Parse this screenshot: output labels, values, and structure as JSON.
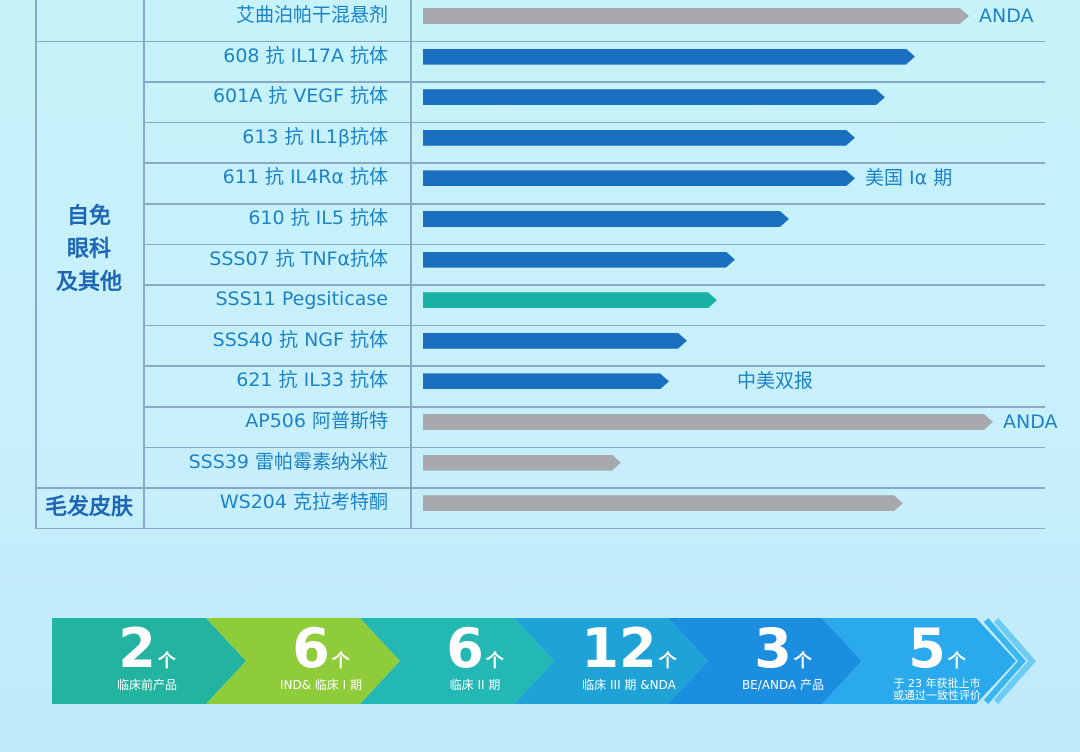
{
  "chart_data": {
    "type": "bar",
    "orientation": "horizontal",
    "categories": [
      {
        "label": "自免\n眼科\n及其他",
        "rows": [
          "608 抗 IL17A 抗体",
          "601A 抗 VEGF 抗体",
          "613 抗 IL1β抗体",
          "611 抗 IL4Rα 抗体",
          "610 抗 IL5 抗体",
          "SSS07 抗 TNFα抗体",
          "SSS11 Pegsiticase",
          "SSS40 抗 NGF 抗体",
          "621 抗 IL33 抗体",
          "AP506 阿普斯特",
          "SSS39 雷帕霉素纳米粒"
        ]
      },
      {
        "label": "毛发皮肤",
        "rows": [
          "WS204 克拉考特酮"
        ]
      }
    ],
    "rows": [
      {
        "label": "艾曲泊帕干混悬剂",
        "value": 0.91,
        "color": "#a7a9ac",
        "note": "ANDA"
      },
      {
        "label": "608 抗 IL17A 抗体",
        "value": 0.82,
        "color": "#1a6fc0",
        "note": ""
      },
      {
        "label": "601A 抗 VEGF 抗体",
        "value": 0.77,
        "color": "#1a6fc0",
        "note": ""
      },
      {
        "label": "613 抗 IL1β抗体",
        "value": 0.72,
        "color": "#1a6fc0",
        "note": ""
      },
      {
        "label": "611 抗 IL4Rα 抗体",
        "value": 0.72,
        "color": "#1a6fc0",
        "note": "美国 Iα 期"
      },
      {
        "label": "610 抗 IL5 抗体",
        "value": 0.61,
        "color": "#1a6fc0",
        "note": ""
      },
      {
        "label": "SSS07 抗 TNFα抗体",
        "value": 0.52,
        "color": "#1a6fc0",
        "note": ""
      },
      {
        "label": "SSS11 Pegsiticase",
        "value": 0.49,
        "color": "#1ab2a6",
        "note": ""
      },
      {
        "label": "SSS40 抗 NGF 抗体",
        "value": 0.44,
        "color": "#1a6fc0",
        "note": ""
      },
      {
        "label": "621 抗 IL33 抗体",
        "value": 0.41,
        "color": "#1a6fc0",
        "note": "中美双报"
      },
      {
        "label": "AP506 阿普斯特",
        "value": 0.95,
        "color": "#a7a9ac",
        "note": "ANDA"
      },
      {
        "label": "SSS39 雷帕霉素纳米粒",
        "value": 0.33,
        "color": "#a7a9ac",
        "note": ""
      },
      {
        "label": "WS204 克拉考特酮",
        "value": 0.8,
        "color": "#a7a9ac",
        "note": ""
      }
    ]
  },
  "summary": {
    "items": [
      {
        "number": "2",
        "unit": "个",
        "stage": "临床前产品"
      },
      {
        "number": "6",
        "unit": "个",
        "stage": "IND& 临床 I 期"
      },
      {
        "number": "6",
        "unit": "个",
        "stage": "临床 II 期"
      },
      {
        "number": "12",
        "unit": "个",
        "stage": "临床 III 期 &NDA"
      },
      {
        "number": "3",
        "unit": "个",
        "stage": "BE/ANDA 产品"
      },
      {
        "number": "5",
        "unit": "个",
        "stage": "于 23 年获批上市\n或通过一致性评价"
      }
    ],
    "colors": [
      "#22b4a0",
      "#8fcc3a",
      "#24b8b4",
      "#1fa3d6",
      "#1c8ee0",
      "#2aa9ec"
    ]
  }
}
